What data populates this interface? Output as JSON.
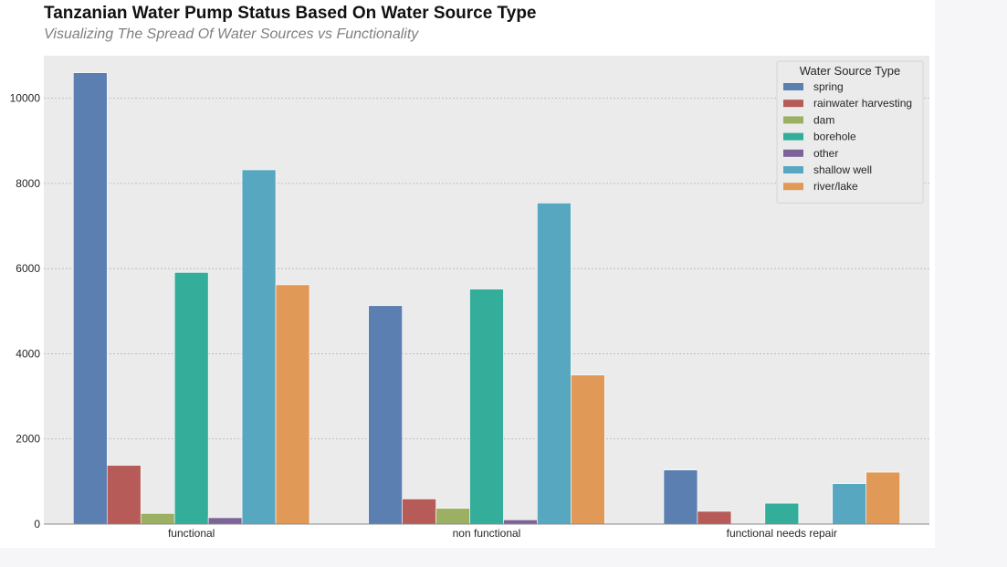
{
  "chart_data": {
    "type": "bar",
    "title": "Tanzanian Water Pump Status Based On Water Source Type",
    "subtitle": "Visualizing The Spread Of Water Sources vs Functionality",
    "xlabel": "",
    "ylabel": "",
    "categories": [
      "functional",
      "non functional",
      "functional needs repair"
    ],
    "ylim": [
      0,
      11000
    ],
    "yticks": [
      0,
      2000,
      4000,
      6000,
      8000,
      10000
    ],
    "grid": true,
    "legend": {
      "title": "Water Source Type",
      "position": "top-right"
    },
    "series": [
      {
        "name": "spring",
        "color": "#5b7fb1",
        "values": [
          10600,
          5130,
          1270
        ]
      },
      {
        "name": "rainwater harvesting",
        "color": "#b65b57",
        "values": [
          1380,
          590,
          300
        ]
      },
      {
        "name": "dam",
        "color": "#9cb064",
        "values": [
          250,
          370,
          0
        ]
      },
      {
        "name": "borehole",
        "color": "#34ad9a",
        "values": [
          5910,
          5520,
          490
        ]
      },
      {
        "name": "other",
        "color": "#7c6498",
        "values": [
          150,
          100,
          0
        ]
      },
      {
        "name": "shallow well",
        "color": "#58a7c0",
        "values": [
          8320,
          7540,
          950
        ]
      },
      {
        "name": "river/lake",
        "color": "#e19958",
        "values": [
          5620,
          3500,
          1220
        ]
      }
    ]
  }
}
